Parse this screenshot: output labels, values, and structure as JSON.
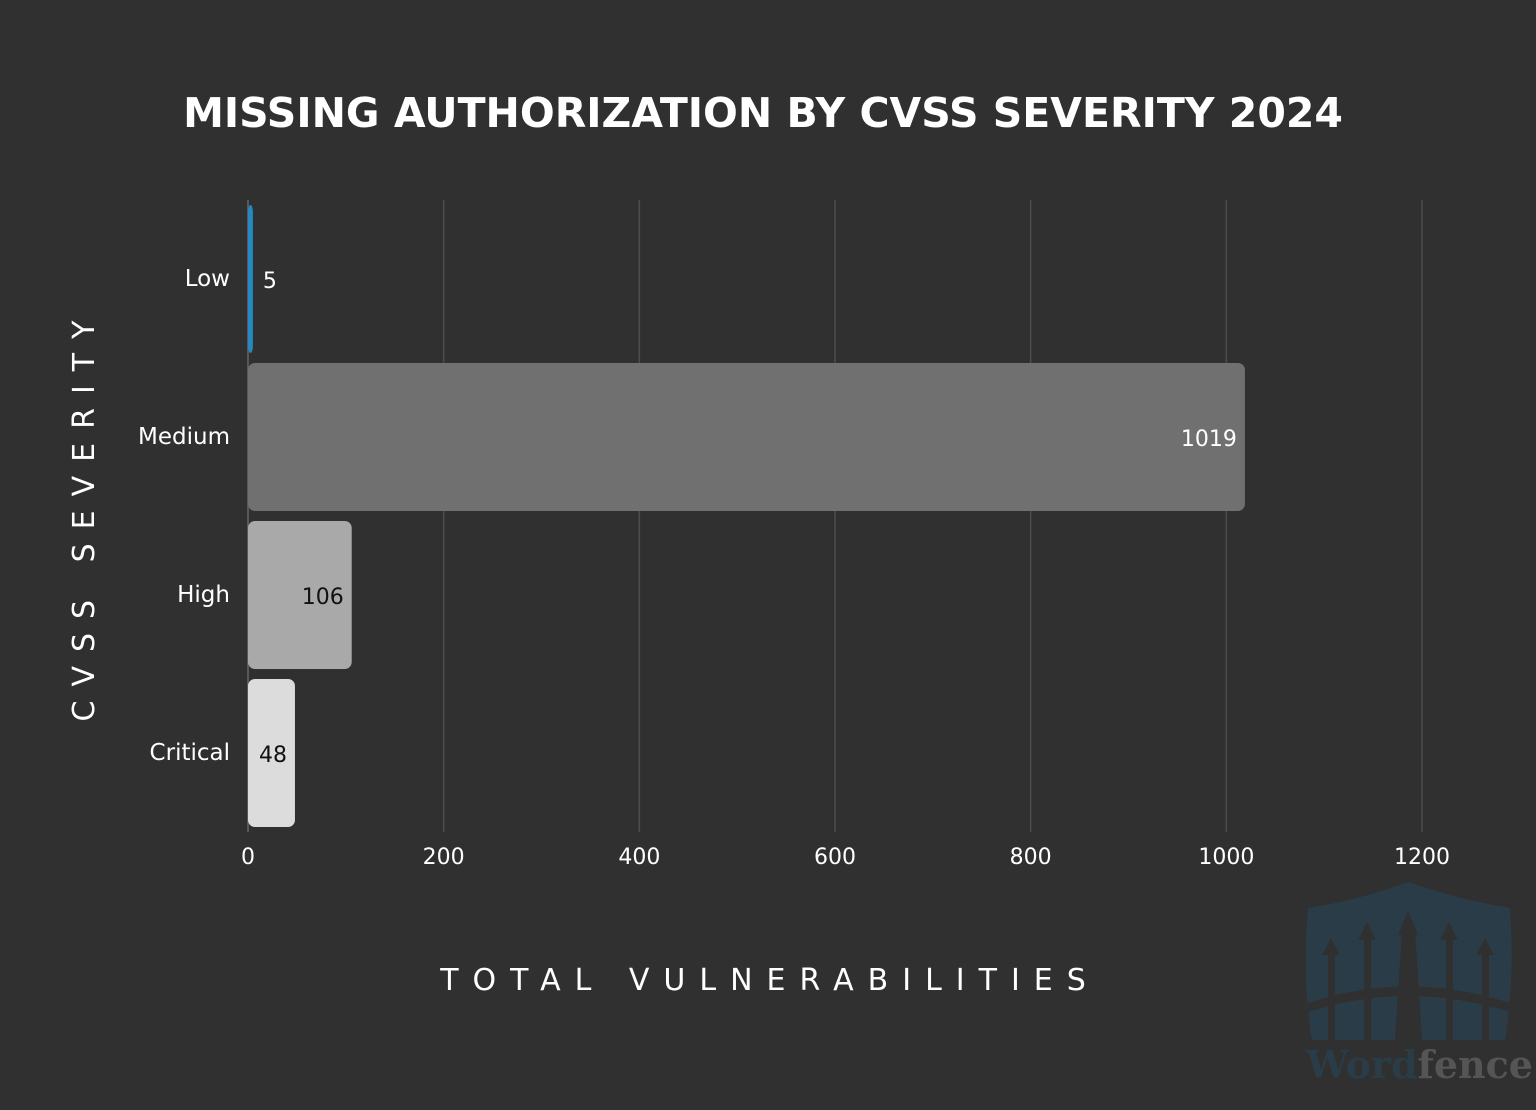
{
  "chart_data": {
    "type": "bar",
    "orientation": "horizontal",
    "title": "MISSING AUTHORIZATION BY CVSS SEVERITY 2024",
    "xlabel": "TOTAL VULNERABILITIES",
    "ylabel": "CVSS SEVERITY",
    "categories": [
      "Low",
      "Medium",
      "High",
      "Critical"
    ],
    "values": [
      5,
      1019,
      106,
      48
    ],
    "bar_colors": [
      "#2389c0",
      "#707070",
      "#a9a9a9",
      "#dcdcdc"
    ],
    "label_colors": [
      "#ffffff",
      "#ffffff",
      "#111111",
      "#111111"
    ],
    "xlim": [
      0,
      1200
    ],
    "xticks": [
      0,
      200,
      400,
      600,
      800,
      1000,
      1200
    ],
    "grid": "vertical",
    "legend": "none",
    "background": "#303030"
  },
  "watermark": {
    "text_part1": "Word",
    "text_part2": "fence",
    "shield_color": "#2a3c48",
    "text_color1": "#2a3c48",
    "text_color2": "#555555"
  }
}
